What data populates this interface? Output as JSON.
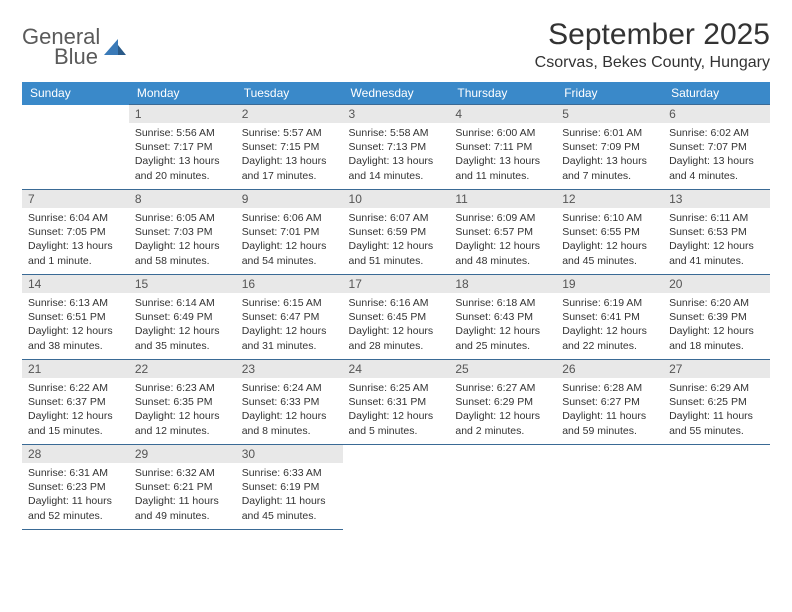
{
  "logo": {
    "line1": "General",
    "line2": "Blue"
  },
  "title": "September 2025",
  "location": "Csorvas, Bekes County, Hungary",
  "colors": {
    "header_bg": "#3a89c9",
    "header_text": "#ffffff",
    "border": "#3a6a95",
    "daynum_bg": "#e8e8e8",
    "daynum_text": "#555555",
    "body_text": "#333333",
    "logo_gray": "#5a5a5a",
    "logo_blue": "#3a7ab8"
  },
  "weekdays": [
    "Sunday",
    "Monday",
    "Tuesday",
    "Wednesday",
    "Thursday",
    "Friday",
    "Saturday"
  ],
  "weeks": [
    [
      null,
      {
        "n": "1",
        "sunrise": "5:56 AM",
        "sunset": "7:17 PM",
        "daylight": "13 hours and 20 minutes."
      },
      {
        "n": "2",
        "sunrise": "5:57 AM",
        "sunset": "7:15 PM",
        "daylight": "13 hours and 17 minutes."
      },
      {
        "n": "3",
        "sunrise": "5:58 AM",
        "sunset": "7:13 PM",
        "daylight": "13 hours and 14 minutes."
      },
      {
        "n": "4",
        "sunrise": "6:00 AM",
        "sunset": "7:11 PM",
        "daylight": "13 hours and 11 minutes."
      },
      {
        "n": "5",
        "sunrise": "6:01 AM",
        "sunset": "7:09 PM",
        "daylight": "13 hours and 7 minutes."
      },
      {
        "n": "6",
        "sunrise": "6:02 AM",
        "sunset": "7:07 PM",
        "daylight": "13 hours and 4 minutes."
      }
    ],
    [
      {
        "n": "7",
        "sunrise": "6:04 AM",
        "sunset": "7:05 PM",
        "daylight": "13 hours and 1 minute."
      },
      {
        "n": "8",
        "sunrise": "6:05 AM",
        "sunset": "7:03 PM",
        "daylight": "12 hours and 58 minutes."
      },
      {
        "n": "9",
        "sunrise": "6:06 AM",
        "sunset": "7:01 PM",
        "daylight": "12 hours and 54 minutes."
      },
      {
        "n": "10",
        "sunrise": "6:07 AM",
        "sunset": "6:59 PM",
        "daylight": "12 hours and 51 minutes."
      },
      {
        "n": "11",
        "sunrise": "6:09 AM",
        "sunset": "6:57 PM",
        "daylight": "12 hours and 48 minutes."
      },
      {
        "n": "12",
        "sunrise": "6:10 AM",
        "sunset": "6:55 PM",
        "daylight": "12 hours and 45 minutes."
      },
      {
        "n": "13",
        "sunrise": "6:11 AM",
        "sunset": "6:53 PM",
        "daylight": "12 hours and 41 minutes."
      }
    ],
    [
      {
        "n": "14",
        "sunrise": "6:13 AM",
        "sunset": "6:51 PM",
        "daylight": "12 hours and 38 minutes."
      },
      {
        "n": "15",
        "sunrise": "6:14 AM",
        "sunset": "6:49 PM",
        "daylight": "12 hours and 35 minutes."
      },
      {
        "n": "16",
        "sunrise": "6:15 AM",
        "sunset": "6:47 PM",
        "daylight": "12 hours and 31 minutes."
      },
      {
        "n": "17",
        "sunrise": "6:16 AM",
        "sunset": "6:45 PM",
        "daylight": "12 hours and 28 minutes."
      },
      {
        "n": "18",
        "sunrise": "6:18 AM",
        "sunset": "6:43 PM",
        "daylight": "12 hours and 25 minutes."
      },
      {
        "n": "19",
        "sunrise": "6:19 AM",
        "sunset": "6:41 PM",
        "daylight": "12 hours and 22 minutes."
      },
      {
        "n": "20",
        "sunrise": "6:20 AM",
        "sunset": "6:39 PM",
        "daylight": "12 hours and 18 minutes."
      }
    ],
    [
      {
        "n": "21",
        "sunrise": "6:22 AM",
        "sunset": "6:37 PM",
        "daylight": "12 hours and 15 minutes."
      },
      {
        "n": "22",
        "sunrise": "6:23 AM",
        "sunset": "6:35 PM",
        "daylight": "12 hours and 12 minutes."
      },
      {
        "n": "23",
        "sunrise": "6:24 AM",
        "sunset": "6:33 PM",
        "daylight": "12 hours and 8 minutes."
      },
      {
        "n": "24",
        "sunrise": "6:25 AM",
        "sunset": "6:31 PM",
        "daylight": "12 hours and 5 minutes."
      },
      {
        "n": "25",
        "sunrise": "6:27 AM",
        "sunset": "6:29 PM",
        "daylight": "12 hours and 2 minutes."
      },
      {
        "n": "26",
        "sunrise": "6:28 AM",
        "sunset": "6:27 PM",
        "daylight": "11 hours and 59 minutes."
      },
      {
        "n": "27",
        "sunrise": "6:29 AM",
        "sunset": "6:25 PM",
        "daylight": "11 hours and 55 minutes."
      }
    ],
    [
      {
        "n": "28",
        "sunrise": "6:31 AM",
        "sunset": "6:23 PM",
        "daylight": "11 hours and 52 minutes."
      },
      {
        "n": "29",
        "sunrise": "6:32 AM",
        "sunset": "6:21 PM",
        "daylight": "11 hours and 49 minutes."
      },
      {
        "n": "30",
        "sunrise": "6:33 AM",
        "sunset": "6:19 PM",
        "daylight": "11 hours and 45 minutes."
      },
      null,
      null,
      null,
      null
    ]
  ]
}
